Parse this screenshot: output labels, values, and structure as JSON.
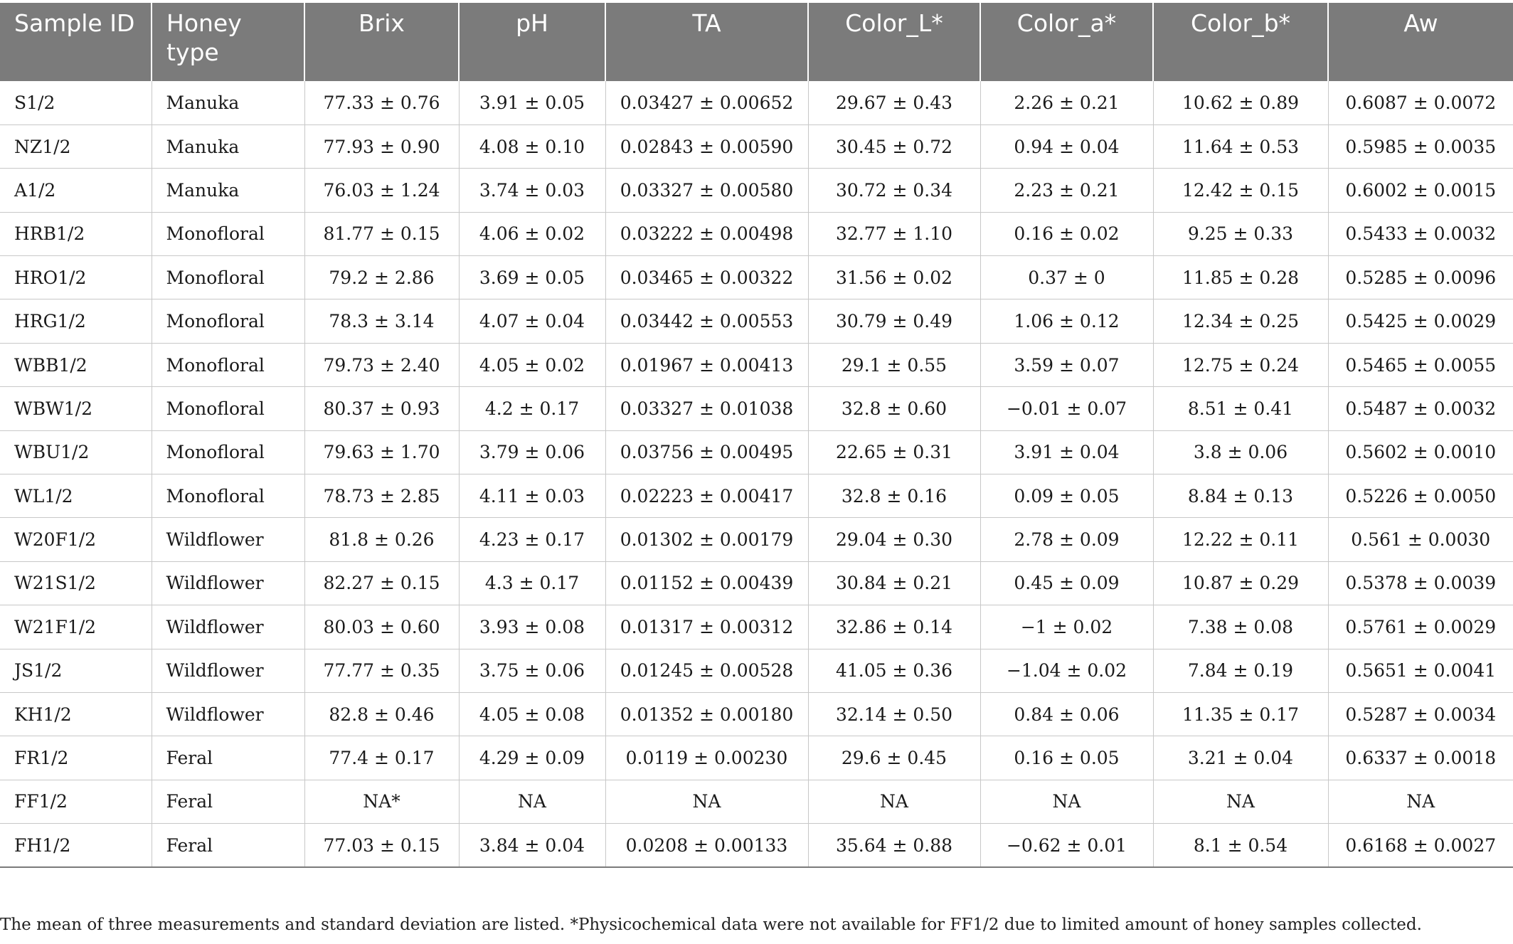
{
  "table": {
    "headers": [
      "Sample ID",
      "Honey type",
      "Brix",
      "pH",
      "TA",
      "Color_L*",
      "Color_a*",
      "Color_b*",
      "Aw"
    ],
    "rows": [
      [
        "S1/2",
        "Manuka",
        "77.33 ± 0.76",
        "3.91 ± 0.05",
        "0.03427 ± 0.00652",
        "29.67 ± 0.43",
        "2.26 ± 0.21",
        "10.62 ± 0.89",
        "0.6087 ± 0.0072"
      ],
      [
        "NZ1/2",
        "Manuka",
        "77.93 ± 0.90",
        "4.08 ± 0.10",
        "0.02843 ± 0.00590",
        "30.45 ± 0.72",
        "0.94 ± 0.04",
        "11.64 ± 0.53",
        "0.5985 ± 0.0035"
      ],
      [
        "A1/2",
        "Manuka",
        "76.03 ± 1.24",
        "3.74 ± 0.03",
        "0.03327 ± 0.00580",
        "30.72 ± 0.34",
        "2.23 ± 0.21",
        "12.42 ± 0.15",
        "0.6002 ± 0.0015"
      ],
      [
        "HRB1/2",
        "Monofloral",
        "81.77 ± 0.15",
        "4.06 ± 0.02",
        "0.03222 ± 0.00498",
        "32.77 ± 1.10",
        "0.16 ± 0.02",
        "9.25 ± 0.33",
        "0.5433 ± 0.0032"
      ],
      [
        "HRO1/2",
        "Monofloral",
        "79.2 ± 2.86",
        "3.69 ± 0.05",
        "0.03465 ± 0.00322",
        "31.56 ± 0.02",
        "0.37 ± 0",
        "11.85 ± 0.28",
        "0.5285 ± 0.0096"
      ],
      [
        "HRG1/2",
        "Monofloral",
        "78.3 ± 3.14",
        "4.07 ± 0.04",
        "0.03442 ± 0.00553",
        "30.79 ± 0.49",
        "1.06 ± 0.12",
        "12.34 ± 0.25",
        "0.5425 ± 0.0029"
      ],
      [
        "WBB1/2",
        "Monofloral",
        "79.73 ± 2.40",
        "4.05 ± 0.02",
        "0.01967 ± 0.00413",
        "29.1 ± 0.55",
        "3.59 ± 0.07",
        "12.75 ± 0.24",
        "0.5465 ± 0.0055"
      ],
      [
        "WBW1/2",
        "Monofloral",
        "80.37 ± 0.93",
        "4.2 ± 0.17",
        "0.03327 ± 0.01038",
        "32.8 ± 0.60",
        "−0.01 ± 0.07",
        "8.51 ± 0.41",
        "0.5487 ± 0.0032"
      ],
      [
        "WBU1/2",
        "Monofloral",
        "79.63 ± 1.70",
        "3.79 ± 0.06",
        "0.03756 ± 0.00495",
        "22.65 ± 0.31",
        "3.91 ± 0.04",
        "3.8 ± 0.06",
        "0.5602 ± 0.0010"
      ],
      [
        "WL1/2",
        "Monofloral",
        "78.73 ± 2.85",
        "4.11 ± 0.03",
        "0.02223 ± 0.00417",
        "32.8 ± 0.16",
        "0.09 ± 0.05",
        "8.84 ± 0.13",
        "0.5226 ± 0.0050"
      ],
      [
        "W20F1/2",
        "Wildflower",
        "81.8 ± 0.26",
        "4.23 ± 0.17",
        "0.01302 ± 0.00179",
        "29.04 ± 0.30",
        "2.78 ± 0.09",
        "12.22 ± 0.11",
        "0.561 ± 0.0030"
      ],
      [
        "W21S1/2",
        "Wildflower",
        "82.27 ± 0.15",
        "4.3 ± 0.17",
        "0.01152 ± 0.00439",
        "30.84 ± 0.21",
        "0.45 ± 0.09",
        "10.87 ± 0.29",
        "0.5378 ± 0.0039"
      ],
      [
        "W21F1/2",
        "Wildflower",
        "80.03 ± 0.60",
        "3.93 ± 0.08",
        "0.01317 ± 0.00312",
        "32.86 ± 0.14",
        "−1 ± 0.02",
        "7.38 ± 0.08",
        "0.5761 ± 0.0029"
      ],
      [
        "JS1/2",
        "Wildflower",
        "77.77 ± 0.35",
        "3.75 ± 0.06",
        "0.01245 ± 0.00528",
        "41.05 ± 0.36",
        "−1.04 ± 0.02",
        "7.84 ± 0.19",
        "0.5651 ± 0.0041"
      ],
      [
        "KH1/2",
        "Wildflower",
        "82.8 ± 0.46",
        "4.05 ± 0.08",
        "0.01352 ± 0.00180",
        "32.14 ± 0.50",
        "0.84 ± 0.06",
        "11.35 ± 0.17",
        "0.5287 ± 0.0034"
      ],
      [
        "FR1/2",
        "Feral",
        "77.4 ± 0.17",
        "4.29 ± 0.09",
        "0.0119 ± 0.00230",
        "29.6 ± 0.45",
        "0.16 ± 0.05",
        "3.21 ± 0.04",
        "0.6337 ± 0.0018"
      ],
      [
        "FF1/2",
        "Feral",
        "NA*",
        "NA",
        "NA",
        "NA",
        "NA",
        "NA",
        "NA"
      ],
      [
        "FH1/2",
        "Feral",
        "77.03 ± 0.15",
        "3.84 ± 0.04",
        "0.0208 ± 0.00133",
        "35.64 ± 0.88",
        "−0.62 ± 0.01",
        "8.1 ± 0.54",
        "0.6168 ± 0.0027"
      ]
    ]
  },
  "footnote": "The mean of three measurements and standard deviation are listed. *Physicochemical data were not available for FF1/2 due to limited amount of honey samples collected."
}
